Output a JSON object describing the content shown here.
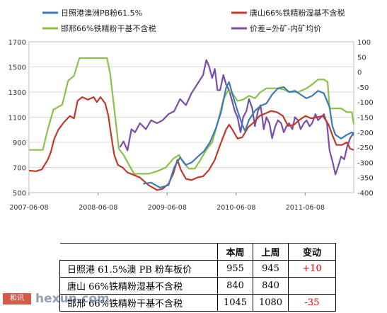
{
  "chart_data": {
    "type": "line",
    "legend": [
      {
        "name": "日照港澳洲PB粉61.5%",
        "color": "#3d7ab8"
      },
      {
        "name": "唐山66%铁精粉湿基不含税",
        "color": "#c0392b"
      },
      {
        "name": "邯邢66%铁精粉干基不含税",
        "color": "#8cc04a"
      },
      {
        "name": "价差=外矿-内矿均价",
        "color": "#7a4fa8"
      }
    ],
    "x_ticks": [
      "2007-06-08",
      "2008-06-08",
      "2009-06-08",
      "2010-06-08",
      "2011-06-08"
    ],
    "x_range": [
      "2007-06-08",
      "2012-02-20"
    ],
    "y_left": {
      "min": 500,
      "max": 1700,
      "ticks": [
        500,
        700,
        900,
        1100,
        1300,
        1500,
        1700
      ]
    },
    "y_right": {
      "min": -400,
      "max": 100,
      "ticks": [
        100,
        50,
        0,
        -50,
        -100,
        -150,
        -200,
        -250,
        -300,
        -350,
        -400
      ]
    },
    "grid": true,
    "series": [
      {
        "name": "日照港澳洲PB粉61.5%",
        "axis": "left",
        "color": "#3d7ab8",
        "points": [
          [
            "2009-02-01",
            570
          ],
          [
            "2009-03-15",
            580
          ],
          [
            "2009-05-01",
            540
          ],
          [
            "2009-06-15",
            560
          ],
          [
            "2009-07-15",
            700
          ],
          [
            "2009-08-15",
            780
          ],
          [
            "2009-09-15",
            720
          ],
          [
            "2009-10-15",
            740
          ],
          [
            "2009-11-20",
            790
          ],
          [
            "2009-12-20",
            830
          ],
          [
            "2010-01-20",
            900
          ],
          [
            "2010-02-20",
            1010
          ],
          [
            "2010-03-20",
            1140
          ],
          [
            "2010-04-15",
            1330
          ],
          [
            "2010-05-01",
            1380
          ],
          [
            "2010-05-20",
            1280
          ],
          [
            "2010-06-15",
            1150
          ],
          [
            "2010-07-10",
            1040
          ],
          [
            "2010-07-25",
            990
          ],
          [
            "2010-08-15",
            1080
          ],
          [
            "2010-09-15",
            1150
          ],
          [
            "2010-10-15",
            1190
          ],
          [
            "2010-11-15",
            1210
          ],
          [
            "2010-12-15",
            1280
          ],
          [
            "2011-01-15",
            1330
          ],
          [
            "2011-02-15",
            1340
          ],
          [
            "2011-03-15",
            1300
          ],
          [
            "2011-04-15",
            1310
          ],
          [
            "2011-05-15",
            1280
          ],
          [
            "2011-06-15",
            1250
          ],
          [
            "2011-07-15",
            1270
          ],
          [
            "2011-08-15",
            1310
          ],
          [
            "2011-09-15",
            1290
          ],
          [
            "2011-10-15",
            1180
          ],
          [
            "2011-10-30",
            1030
          ],
          [
            "2011-11-15",
            960
          ],
          [
            "2011-12-15",
            930
          ],
          [
            "2012-01-15",
            960
          ],
          [
            "2012-02-10",
            980
          ],
          [
            "2012-02-20",
            955
          ]
        ]
      },
      {
        "name": "唐山66%铁精粉湿基不含税",
        "axis": "left",
        "color": "#c0392b",
        "points": [
          [
            "2007-06-08",
            675
          ],
          [
            "2007-07-15",
            670
          ],
          [
            "2007-08-15",
            685
          ],
          [
            "2007-09-15",
            760
          ],
          [
            "2007-10-01",
            820
          ],
          [
            "2007-10-20",
            930
          ],
          [
            "2007-11-10",
            1000
          ],
          [
            "2007-12-10",
            1060
          ],
          [
            "2008-01-10",
            1110
          ],
          [
            "2008-02-01",
            1090
          ],
          [
            "2008-02-20",
            1230
          ],
          [
            "2008-03-15",
            1260
          ],
          [
            "2008-04-15",
            1240
          ],
          [
            "2008-05-15",
            1260
          ],
          [
            "2008-06-01",
            1220
          ],
          [
            "2008-06-20",
            1260
          ],
          [
            "2008-07-15",
            1210
          ],
          [
            "2008-08-01",
            1110
          ],
          [
            "2008-08-15",
            960
          ],
          [
            "2008-09-01",
            800
          ],
          [
            "2008-09-20",
            720
          ],
          [
            "2008-10-15",
            700
          ],
          [
            "2008-11-10",
            660
          ],
          [
            "2008-12-15",
            640
          ],
          [
            "2009-01-15",
            620
          ],
          [
            "2009-03-01",
            560
          ],
          [
            "2009-04-15",
            520
          ],
          [
            "2009-05-15",
            530
          ],
          [
            "2009-06-15",
            570
          ],
          [
            "2009-07-10",
            650
          ],
          [
            "2009-08-01",
            760
          ],
          [
            "2009-08-20",
            680
          ],
          [
            "2009-09-15",
            610
          ],
          [
            "2009-10-15",
            600
          ],
          [
            "2009-11-15",
            620
          ],
          [
            "2009-12-15",
            630
          ],
          [
            "2010-01-15",
            680
          ],
          [
            "2010-02-15",
            760
          ],
          [
            "2010-03-15",
            880
          ],
          [
            "2010-04-15",
            1000
          ],
          [
            "2010-05-01",
            1040
          ],
          [
            "2010-05-20",
            1000
          ],
          [
            "2010-06-15",
            930
          ],
          [
            "2010-07-10",
            940
          ],
          [
            "2010-08-10",
            1020
          ],
          [
            "2010-09-10",
            1060
          ],
          [
            "2010-10-10",
            1110
          ],
          [
            "2010-11-10",
            1130
          ],
          [
            "2010-12-10",
            1150
          ],
          [
            "2011-01-10",
            1140
          ],
          [
            "2011-02-10",
            1110
          ],
          [
            "2011-03-10",
            1030
          ],
          [
            "2011-04-10",
            1040
          ],
          [
            "2011-05-10",
            1080
          ],
          [
            "2011-06-10",
            1110
          ],
          [
            "2011-07-10",
            1090
          ],
          [
            "2011-08-10",
            1100
          ],
          [
            "2011-09-10",
            1110
          ],
          [
            "2011-10-10",
            1040
          ],
          [
            "2011-11-01",
            950
          ],
          [
            "2011-11-20",
            880
          ],
          [
            "2011-12-20",
            880
          ],
          [
            "2012-01-15",
            900
          ],
          [
            "2012-02-01",
            850
          ],
          [
            "2012-02-20",
            840
          ]
        ]
      },
      {
        "name": "邯邢66%铁精粉干基不含税",
        "axis": "left",
        "color": "#8cc04a",
        "points": [
          [
            "2007-06-08",
            840
          ],
          [
            "2007-08-20",
            840
          ],
          [
            "2007-09-15",
            1000
          ],
          [
            "2007-10-15",
            1160
          ],
          [
            "2007-12-01",
            1200
          ],
          [
            "2008-01-01",
            1390
          ],
          [
            "2008-02-01",
            1430
          ],
          [
            "2008-03-01",
            1570
          ],
          [
            "2008-06-01",
            1570
          ],
          [
            "2008-07-25",
            1570
          ],
          [
            "2008-08-10",
            1450
          ],
          [
            "2008-08-25",
            1260
          ],
          [
            "2008-09-10",
            1050
          ],
          [
            "2008-09-25",
            850
          ],
          [
            "2008-10-20",
            800
          ],
          [
            "2008-11-15",
            730
          ],
          [
            "2008-12-15",
            650
          ],
          [
            "2009-01-15",
            650
          ],
          [
            "2009-03-01",
            650
          ],
          [
            "2009-04-15",
            670
          ],
          [
            "2009-06-01",
            700
          ],
          [
            "2009-07-10",
            770
          ],
          [
            "2009-08-10",
            800
          ],
          [
            "2009-09-01",
            740
          ],
          [
            "2009-10-01",
            690
          ],
          [
            "2009-11-01",
            690
          ],
          [
            "2009-12-01",
            760
          ],
          [
            "2010-01-01",
            840
          ],
          [
            "2010-02-01",
            900
          ],
          [
            "2010-03-01",
            1050
          ],
          [
            "2010-04-01",
            1240
          ],
          [
            "2010-04-25",
            1310
          ],
          [
            "2010-05-20",
            1290
          ],
          [
            "2010-06-15",
            1230
          ],
          [
            "2010-07-15",
            1240
          ],
          [
            "2010-08-15",
            1270
          ],
          [
            "2010-09-15",
            1250
          ],
          [
            "2010-10-15",
            1300
          ],
          [
            "2010-11-15",
            1330
          ],
          [
            "2010-12-15",
            1330
          ],
          [
            "2011-01-15",
            1330
          ],
          [
            "2011-02-15",
            1320
          ],
          [
            "2011-03-15",
            1300
          ],
          [
            "2011-05-01",
            1300
          ],
          [
            "2011-06-15",
            1330
          ],
          [
            "2011-07-15",
            1360
          ],
          [
            "2011-08-15",
            1400
          ],
          [
            "2011-09-15",
            1400
          ],
          [
            "2011-10-05",
            1380
          ],
          [
            "2011-10-15",
            1170
          ],
          [
            "2011-12-15",
            1170
          ],
          [
            "2012-01-15",
            1140
          ],
          [
            "2012-02-10",
            1140
          ],
          [
            "2012-02-20",
            1045
          ]
        ]
      },
      {
        "name": "价差=外矿-内矿均价",
        "axis": "right",
        "color": "#7a4fa8",
        "points": [
          [
            "2008-10-01",
            -250
          ],
          [
            "2008-10-20",
            -230
          ],
          [
            "2008-11-10",
            -260
          ],
          [
            "2008-12-01",
            -190
          ],
          [
            "2008-12-20",
            -200
          ],
          [
            "2009-01-15",
            -170
          ],
          [
            "2009-02-15",
            -190
          ],
          [
            "2009-03-15",
            -160
          ],
          [
            "2009-04-15",
            -170
          ],
          [
            "2009-05-15",
            -160
          ],
          [
            "2009-06-15",
            -140
          ],
          [
            "2009-07-15",
            -130
          ],
          [
            "2009-08-15",
            -90
          ],
          [
            "2009-09-15",
            -110
          ],
          [
            "2009-10-15",
            -70
          ],
          [
            "2009-11-15",
            -40
          ],
          [
            "2009-12-15",
            -10
          ],
          [
            "2010-01-01",
            40
          ],
          [
            "2010-01-15",
            20
          ],
          [
            "2010-02-01",
            -20
          ],
          [
            "2010-02-15",
            10
          ],
          [
            "2010-03-01",
            -60
          ],
          [
            "2010-03-15",
            -60
          ],
          [
            "2010-04-01",
            -10
          ],
          [
            "2010-04-15",
            -40
          ],
          [
            "2010-05-01",
            -60
          ],
          [
            "2010-05-15",
            -90
          ],
          [
            "2010-06-01",
            -130
          ],
          [
            "2010-06-15",
            -150
          ],
          [
            "2010-07-01",
            -200
          ],
          [
            "2010-07-15",
            -150
          ],
          [
            "2010-08-01",
            -130
          ],
          [
            "2010-08-15",
            -90
          ],
          [
            "2010-09-01",
            -120
          ],
          [
            "2010-09-15",
            -180
          ],
          [
            "2010-10-01",
            -130
          ],
          [
            "2010-10-15",
            -110
          ],
          [
            "2010-11-01",
            -190
          ],
          [
            "2010-11-15",
            -150
          ],
          [
            "2010-12-01",
            -170
          ],
          [
            "2010-12-15",
            -220
          ],
          [
            "2011-01-01",
            -180
          ],
          [
            "2011-01-15",
            -160
          ],
          [
            "2011-02-01",
            -170
          ],
          [
            "2011-02-15",
            -200
          ],
          [
            "2011-03-01",
            -180
          ],
          [
            "2011-03-15",
            -170
          ],
          [
            "2011-04-01",
            -190
          ],
          [
            "2011-04-15",
            -150
          ],
          [
            "2011-05-01",
            -160
          ],
          [
            "2011-05-15",
            -190
          ],
          [
            "2011-06-01",
            -170
          ],
          [
            "2011-06-15",
            -160
          ],
          [
            "2011-07-01",
            -180
          ],
          [
            "2011-07-15",
            -170
          ],
          [
            "2011-08-01",
            -140
          ],
          [
            "2011-08-15",
            -160
          ],
          [
            "2011-09-01",
            -150
          ],
          [
            "2011-09-15",
            -140
          ],
          [
            "2011-10-01",
            -170
          ],
          [
            "2011-10-15",
            -260
          ],
          [
            "2011-11-01",
            -300
          ],
          [
            "2011-11-15",
            -340
          ],
          [
            "2011-12-01",
            -310
          ],
          [
            "2011-12-15",
            -280
          ],
          [
            "2012-01-01",
            -290
          ],
          [
            "2012-01-15",
            -250
          ],
          [
            "2012-02-01",
            -220
          ],
          [
            "2012-02-20",
            -200
          ]
        ]
      }
    ]
  },
  "table": {
    "headers": [
      "本周",
      "上周",
      "变动"
    ],
    "rows": [
      {
        "name": "日照港 61.5%澳 PB 粉车板价",
        "this_week": "955",
        "last_week": "945",
        "change": "+10"
      },
      {
        "name": "唐山 66%铁精粉湿基不含税",
        "this_week": "840",
        "last_week": "840",
        "change": ""
      },
      {
        "name": "邯邢 66%铁精粉干基不含税",
        "this_week": "1045",
        "last_week": "1080",
        "change": "-35"
      }
    ]
  },
  "watermark": {
    "logo": "和讯",
    "text": "hexun.com"
  }
}
